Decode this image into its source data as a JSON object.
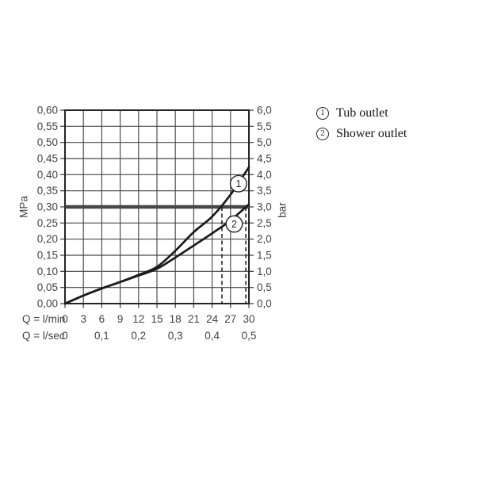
{
  "legend": {
    "items": [
      {
        "symbol": "1",
        "label": "Tub outlet"
      },
      {
        "symbol": "2",
        "label": "Shower outlet"
      }
    ]
  },
  "chart_data": {
    "type": "line",
    "x_lmin": [
      0,
      3,
      6,
      9,
      12,
      15,
      18,
      21,
      24,
      27,
      30
    ],
    "series": [
      {
        "name": "Tub outlet",
        "marker": "1",
        "values_mpa": [
          0,
          0.025,
          0.047,
          0.067,
          0.089,
          0.114,
          0.164,
          0.222,
          0.27,
          0.338,
          0.423
        ]
      },
      {
        "name": "Shower outlet",
        "marker": "2",
        "values_mpa": [
          0,
          0.025,
          0.047,
          0.067,
          0.087,
          0.108,
          0.143,
          0.18,
          0.218,
          0.258,
          0.308
        ]
      }
    ],
    "markers": [
      {
        "label": "1",
        "q_lmin": 28.3,
        "p_mpa": 0.372
      },
      {
        "label": "2",
        "q_lmin": 27.6,
        "p_mpa": 0.247
      }
    ],
    "reference_line": {
      "p_mpa": 0.3,
      "p_bar": 3.0,
      "style": "thick"
    },
    "dashed_guides_lmin": [
      25.6,
      29.5
    ],
    "x_axis": {
      "row1_label": "Q = l/min",
      "row1_ticks": [
        "0",
        "3",
        "6",
        "9",
        "12",
        "15",
        "18",
        "21",
        "24",
        "27",
        "30"
      ],
      "row2_label": "Q = l/sec",
      "row2_ticks": [
        {
          "label": "0",
          "q_lmin": 0
        },
        {
          "label": "0,1",
          "q_lmin": 6
        },
        {
          "label": "0,2",
          "q_lmin": 12
        },
        {
          "label": "0,3",
          "q_lmin": 18
        },
        {
          "label": "0,4",
          "q_lmin": 24
        },
        {
          "label": "0,5",
          "q_lmin": 30
        }
      ],
      "range_lmin": [
        0,
        30
      ]
    },
    "y_axis_left": {
      "label": "MPa",
      "ticks": [
        "0,00",
        "0,05",
        "0,10",
        "0,15",
        "0,20",
        "0,25",
        "0,30",
        "0,35",
        "0,40",
        "0,45",
        "0,50",
        "0,55",
        "0,60"
      ],
      "range_mpa": [
        0,
        0.6
      ]
    },
    "y_axis_right": {
      "label": "bar",
      "ticks": [
        "0,0",
        "0,5",
        "1,0",
        "1,5",
        "2,0",
        "2,5",
        "3,0",
        "3,5",
        "4,0",
        "4,5",
        "5,0",
        "5,5",
        "6,0"
      ],
      "range_bar": [
        0,
        6.0
      ]
    },
    "grid": true,
    "legend_position": "right",
    "colors": {
      "grid": "#474747",
      "frame": "#242424",
      "curve": "#1b1b1b",
      "reference": "#1b1b1b",
      "tick_text": "#424242",
      "background": "#ffffff"
    }
  }
}
